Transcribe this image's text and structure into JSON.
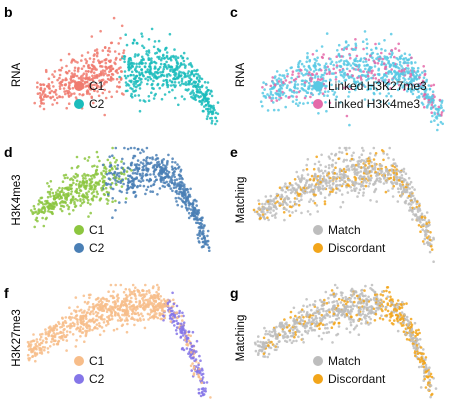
{
  "figure": {
    "panels": [
      {
        "letter": "b",
        "ylabel": "RNA",
        "legend": [
          {
            "label": "C1",
            "color": "#f07a6e"
          },
          {
            "label": "C2",
            "color": "#1bbcbc"
          }
        ]
      },
      {
        "letter": "c",
        "ylabel": "RNA",
        "legend": [
          {
            "label": "Linked H3K27me3",
            "color": "#58c9e4"
          },
          {
            "label": "Linked H3K4me3",
            "color": "#e46aa9"
          }
        ]
      },
      {
        "letter": "d",
        "ylabel": "H3K4me3",
        "legend": [
          {
            "label": "C1",
            "color": "#8cc63f"
          },
          {
            "label": "C2",
            "color": "#4a7fb5"
          }
        ]
      },
      {
        "letter": "e",
        "ylabel": "Matching",
        "legend": [
          {
            "label": "Match",
            "color": "#bdbdbd"
          },
          {
            "label": "Discordant",
            "color": "#f2a51a"
          }
        ]
      },
      {
        "letter": "f",
        "ylabel": "H3K27me3",
        "legend": [
          {
            "label": "C1",
            "color": "#f7bd8a"
          },
          {
            "label": "C2",
            "color": "#8576e8"
          }
        ]
      },
      {
        "letter": "g",
        "ylabel": "Matching",
        "legend": [
          {
            "label": "Match",
            "color": "#bdbdbd"
          },
          {
            "label": "Discordant",
            "color": "#f2a51a"
          }
        ]
      }
    ]
  },
  "chart_data": [
    {
      "type": "scatter",
      "title": "",
      "xlabel": "",
      "ylabel": "RNA",
      "series": [
        {
          "name": "C1",
          "color": "#f07a6e"
        },
        {
          "name": "C2",
          "color": "#1bbcbc"
        }
      ],
      "grid": false,
      "legend": "bottom-right"
    },
    {
      "type": "scatter",
      "title": "",
      "xlabel": "",
      "ylabel": "RNA",
      "series": [
        {
          "name": "Linked H3K27me3",
          "color": "#58c9e4"
        },
        {
          "name": "Linked H3K4me3",
          "color": "#e46aa9"
        }
      ],
      "grid": false,
      "legend": "bottom-right"
    },
    {
      "type": "scatter",
      "title": "",
      "xlabel": "",
      "ylabel": "H3K4me3",
      "series": [
        {
          "name": "C1",
          "color": "#8cc63f"
        },
        {
          "name": "C2",
          "color": "#4a7fb5"
        }
      ],
      "grid": false,
      "legend": "bottom-right"
    },
    {
      "type": "scatter",
      "title": "",
      "xlabel": "",
      "ylabel": "Matching",
      "series": [
        {
          "name": "Match",
          "color": "#bdbdbd"
        },
        {
          "name": "Discordant",
          "color": "#f2a51a"
        }
      ],
      "grid": false,
      "legend": "bottom-right"
    },
    {
      "type": "scatter",
      "title": "",
      "xlabel": "",
      "ylabel": "H3K27me3",
      "series": [
        {
          "name": "C1",
          "color": "#f7bd8a"
        },
        {
          "name": "C2",
          "color": "#8576e8"
        }
      ],
      "grid": false,
      "legend": "bottom-right"
    },
    {
      "type": "scatter",
      "title": "",
      "xlabel": "",
      "ylabel": "Matching",
      "series": [
        {
          "name": "Match",
          "color": "#bdbdbd"
        },
        {
          "name": "Discordant",
          "color": "#f2a51a"
        }
      ],
      "grid": false,
      "legend": "bottom-right"
    }
  ]
}
